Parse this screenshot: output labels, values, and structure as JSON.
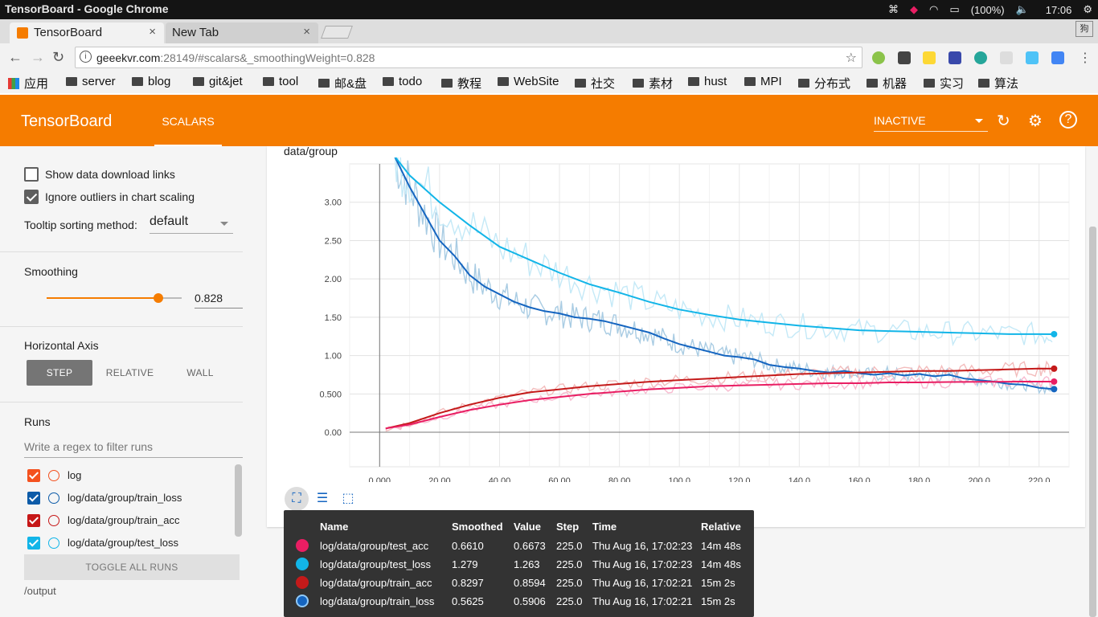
{
  "os": {
    "window_title": "TensorBoard - Google Chrome",
    "battery": "(100%)",
    "time": "17:06"
  },
  "browser": {
    "tabs": [
      {
        "label": "TensorBoard",
        "close": "×"
      },
      {
        "label": "New Tab",
        "close": "×"
      }
    ],
    "corner_label": "狗",
    "url_host": "geeekvr.com",
    "url_path": ":28149/#scalars&_smoothingWeight=0.828",
    "bookmarks": [
      "应用",
      "server",
      "blog",
      "git&jet",
      "tool",
      "邮&盘",
      "todo",
      "教程",
      "WebSite",
      "社交",
      "素材",
      "hust",
      "MPI",
      "分布式",
      "机器",
      "实习",
      "算法"
    ]
  },
  "header": {
    "brand": "TensorBoard",
    "tab": "SCALARS",
    "status": "INACTIVE"
  },
  "sidebar": {
    "show_download": "Show data download links",
    "ignore_outliers": "Ignore outliers in chart scaling",
    "tooltip_sort_label": "Tooltip sorting method:",
    "tooltip_sort_value": "default",
    "smoothing_label": "Smoothing",
    "smoothing_value": "0.828",
    "smoothing_fraction": 0.828,
    "haxis_label": "Horizontal Axis",
    "haxis_options": [
      "STEP",
      "RELATIVE",
      "WALL"
    ],
    "runs_label": "Runs",
    "filter_placeholder": "Write a regex to filter runs",
    "runs": [
      {
        "name": "log",
        "color": "#f4511e"
      },
      {
        "name": "log/data/group/train_loss",
        "color": "#0d5ba8"
      },
      {
        "name": "log/data/group/train_acc",
        "color": "#c61717"
      },
      {
        "name": "log/data/group/test_loss",
        "color": "#12b5e8"
      }
    ],
    "toggle_all": "TOGGLE ALL RUNS",
    "logdir": "/output"
  },
  "chart_data": {
    "type": "line",
    "title": "data/group",
    "xlim": [
      -10,
      230
    ],
    "ylim": [
      -0.45,
      3.5
    ],
    "x_ticks": [
      "0.000",
      "20.00",
      "40.00",
      "60.00",
      "80.00",
      "100.0",
      "120.0",
      "140.0",
      "160.0",
      "180.0",
      "200.0",
      "220.0"
    ],
    "y_ticks": [
      "0.00",
      "0.500",
      "1.00",
      "1.50",
      "2.00",
      "2.50",
      "3.00"
    ],
    "grid": true,
    "series": [
      {
        "name": "log/data/group/train_loss",
        "color": "#1565c0",
        "raw_color": "#a9cce3",
        "x": [
          5,
          10,
          15,
          20,
          25,
          30,
          35,
          40,
          45,
          50,
          55,
          60,
          65,
          70,
          75,
          80,
          85,
          90,
          95,
          100,
          105,
          110,
          115,
          120,
          125,
          130,
          135,
          140,
          145,
          150,
          155,
          160,
          165,
          170,
          175,
          180,
          185,
          190,
          195,
          200,
          205,
          210,
          215,
          220,
          225
        ],
        "y": [
          3.6,
          3.2,
          2.85,
          2.5,
          2.3,
          2.05,
          1.9,
          1.8,
          1.7,
          1.63,
          1.58,
          1.55,
          1.5,
          1.48,
          1.45,
          1.4,
          1.35,
          1.3,
          1.22,
          1.15,
          1.1,
          1.05,
          1.0,
          0.98,
          0.95,
          0.88,
          0.85,
          0.83,
          0.8,
          0.78,
          0.8,
          0.77,
          0.75,
          0.77,
          0.74,
          0.76,
          0.73,
          0.75,
          0.7,
          0.68,
          0.66,
          0.63,
          0.62,
          0.58,
          0.5625
        ]
      },
      {
        "name": "log/data/group/test_loss",
        "color": "#12b5e8",
        "raw_color": "#c4e9f7",
        "x": [
          5,
          10,
          20,
          30,
          40,
          50,
          60,
          70,
          80,
          90,
          100,
          110,
          120,
          130,
          140,
          150,
          160,
          170,
          180,
          190,
          200,
          210,
          220,
          225
        ],
        "y": [
          3.6,
          3.35,
          3.0,
          2.7,
          2.42,
          2.25,
          2.08,
          1.93,
          1.82,
          1.7,
          1.6,
          1.53,
          1.47,
          1.43,
          1.39,
          1.36,
          1.33,
          1.32,
          1.31,
          1.3,
          1.29,
          1.28,
          1.28,
          1.279
        ]
      },
      {
        "name": "log/data/group/train_acc",
        "color": "#c41a1a",
        "raw_color": "#f3bcbc",
        "x": [
          2,
          10,
          20,
          30,
          40,
          50,
          60,
          70,
          80,
          90,
          100,
          110,
          120,
          130,
          140,
          150,
          160,
          170,
          180,
          190,
          200,
          210,
          220,
          225
        ],
        "y": [
          0.05,
          0.12,
          0.25,
          0.36,
          0.45,
          0.52,
          0.56,
          0.6,
          0.63,
          0.66,
          0.68,
          0.7,
          0.72,
          0.74,
          0.76,
          0.77,
          0.78,
          0.79,
          0.8,
          0.8,
          0.81,
          0.82,
          0.83,
          0.8297
        ]
      },
      {
        "name": "log/data/group/test_acc",
        "color": "#e91e63",
        "raw_color": "#f8bbd0",
        "x": [
          2,
          10,
          20,
          30,
          40,
          50,
          60,
          70,
          80,
          90,
          100,
          110,
          120,
          130,
          140,
          150,
          160,
          170,
          180,
          190,
          200,
          210,
          220,
          225
        ],
        "y": [
          0.05,
          0.1,
          0.2,
          0.29,
          0.36,
          0.42,
          0.46,
          0.5,
          0.53,
          0.56,
          0.58,
          0.6,
          0.61,
          0.62,
          0.63,
          0.64,
          0.64,
          0.65,
          0.65,
          0.655,
          0.658,
          0.66,
          0.661,
          0.661
        ]
      }
    ]
  },
  "tooltip": {
    "headers": [
      "Name",
      "Smoothed",
      "Value",
      "Step",
      "Time",
      "Relative"
    ],
    "rows": [
      {
        "name": "log/data/group/test_acc",
        "smoothed": "0.6610",
        "value": "0.6673",
        "step": "225.0",
        "time": "Thu Aug 16, 17:02:23",
        "relative": "14m 48s",
        "color": "#e91e63"
      },
      {
        "name": "log/data/group/test_loss",
        "smoothed": "1.279",
        "value": "1.263",
        "step": "225.0",
        "time": "Thu Aug 16, 17:02:23",
        "relative": "14m 48s",
        "color": "#12b5e8"
      },
      {
        "name": "log/data/group/train_acc",
        "smoothed": "0.8297",
        "value": "0.8594",
        "step": "225.0",
        "time": "Thu Aug 16, 17:02:21",
        "relative": "15m 2s",
        "color": "#c41a1a"
      },
      {
        "name": "log/data/group/train_loss",
        "smoothed": "0.5625",
        "value": "0.5906",
        "step": "225.0",
        "time": "Thu Aug 16, 17:02:21",
        "relative": "15m 2s",
        "color": "#1565c0"
      }
    ]
  }
}
